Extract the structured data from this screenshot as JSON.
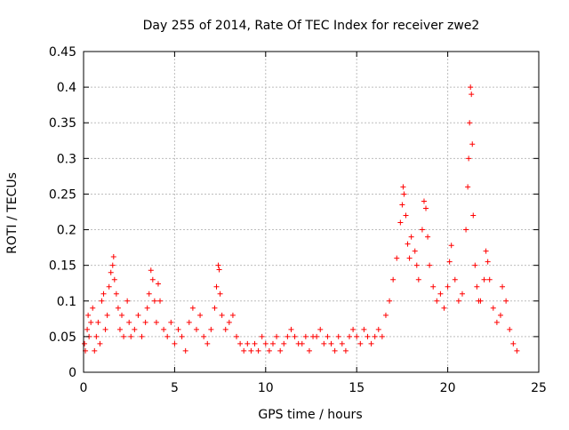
{
  "chart_data": {
    "type": "scatter",
    "title": "Day 255 of 2014, Rate Of TEC Index for receiver zwe2",
    "xlabel": "GPS time / hours",
    "ylabel": "ROTI / TECUs",
    "xlim": [
      0,
      25
    ],
    "ylim": [
      0,
      0.45
    ],
    "xticks": [
      0,
      5,
      10,
      15,
      20,
      25
    ],
    "yticks": [
      0,
      0.05,
      0.1,
      0.15,
      0.2,
      0.25,
      0.3,
      0.35,
      0.4,
      0.45
    ],
    "xtick_labels": [
      "0",
      "5",
      "10",
      "15",
      "20",
      "25"
    ],
    "ytick_labels": [
      "0",
      "0.05",
      "0.1",
      "0.15",
      "0.2",
      "0.25",
      "0.3",
      "0.35",
      "0.4",
      "0.45"
    ],
    "grid": true,
    "marker": "+",
    "series": [
      {
        "name": "ROTI",
        "color": "#ff0000",
        "points": [
          [
            0.05,
            0.04
          ],
          [
            0.1,
            0.03
          ],
          [
            0.2,
            0.06
          ],
          [
            0.25,
            0.08
          ],
          [
            0.3,
            0.05
          ],
          [
            0.4,
            0.07
          ],
          [
            0.5,
            0.09
          ],
          [
            0.6,
            0.03
          ],
          [
            0.7,
            0.05
          ],
          [
            0.8,
            0.07
          ],
          [
            0.9,
            0.04
          ],
          [
            1.0,
            0.1
          ],
          [
            1.1,
            0.11
          ],
          [
            1.2,
            0.06
          ],
          [
            1.3,
            0.08
          ],
          [
            1.4,
            0.12
          ],
          [
            1.5,
            0.14
          ],
          [
            1.6,
            0.15
          ],
          [
            1.65,
            0.162
          ],
          [
            1.7,
            0.13
          ],
          [
            1.8,
            0.11
          ],
          [
            1.9,
            0.09
          ],
          [
            2.0,
            0.06
          ],
          [
            2.1,
            0.08
          ],
          [
            2.2,
            0.05
          ],
          [
            2.4,
            0.1
          ],
          [
            2.5,
            0.07
          ],
          [
            2.6,
            0.05
          ],
          [
            2.8,
            0.06
          ],
          [
            3.0,
            0.08
          ],
          [
            3.2,
            0.05
          ],
          [
            3.4,
            0.07
          ],
          [
            3.5,
            0.09
          ],
          [
            3.6,
            0.11
          ],
          [
            3.7,
            0.143
          ],
          [
            3.8,
            0.13
          ],
          [
            3.9,
            0.1
          ],
          [
            4.0,
            0.07
          ],
          [
            4.1,
            0.124
          ],
          [
            4.2,
            0.1
          ],
          [
            4.4,
            0.06
          ],
          [
            4.6,
            0.05
          ],
          [
            4.8,
            0.07
          ],
          [
            5.0,
            0.04
          ],
          [
            5.2,
            0.06
          ],
          [
            5.4,
            0.05
          ],
          [
            5.6,
            0.03
          ],
          [
            5.8,
            0.07
          ],
          [
            6.0,
            0.09
          ],
          [
            6.2,
            0.06
          ],
          [
            6.4,
            0.08
          ],
          [
            6.6,
            0.05
          ],
          [
            6.8,
            0.04
          ],
          [
            7.0,
            0.06
          ],
          [
            7.2,
            0.09
          ],
          [
            7.3,
            0.12
          ],
          [
            7.4,
            0.15
          ],
          [
            7.45,
            0.144
          ],
          [
            7.5,
            0.11
          ],
          [
            7.6,
            0.08
          ],
          [
            7.8,
            0.06
          ],
          [
            8.0,
            0.07
          ],
          [
            8.2,
            0.08
          ],
          [
            8.4,
            0.05
          ],
          [
            8.6,
            0.04
          ],
          [
            8.8,
            0.03
          ],
          [
            9.0,
            0.04
          ],
          [
            9.2,
            0.03
          ],
          [
            9.4,
            0.04
          ],
          [
            9.6,
            0.03
          ],
          [
            9.8,
            0.05
          ],
          [
            10.0,
            0.04
          ],
          [
            10.2,
            0.03
          ],
          [
            10.4,
            0.04
          ],
          [
            10.6,
            0.05
          ],
          [
            10.8,
            0.03
          ],
          [
            11.0,
            0.04
          ],
          [
            11.2,
            0.05
          ],
          [
            11.4,
            0.06
          ],
          [
            11.6,
            0.05
          ],
          [
            11.8,
            0.04
          ],
          [
            12.0,
            0.04
          ],
          [
            12.2,
            0.05
          ],
          [
            12.4,
            0.03
          ],
          [
            12.6,
            0.05
          ],
          [
            12.8,
            0.05
          ],
          [
            13.0,
            0.06
          ],
          [
            13.2,
            0.04
          ],
          [
            13.4,
            0.05
          ],
          [
            13.6,
            0.04
          ],
          [
            13.8,
            0.03
          ],
          [
            14.0,
            0.05
          ],
          [
            14.2,
            0.04
          ],
          [
            14.4,
            0.03
          ],
          [
            14.6,
            0.05
          ],
          [
            14.8,
            0.06
          ],
          [
            15.0,
            0.05
          ],
          [
            15.2,
            0.04
          ],
          [
            15.4,
            0.06
          ],
          [
            15.6,
            0.05
          ],
          [
            15.8,
            0.04
          ],
          [
            16.0,
            0.05
          ],
          [
            16.2,
            0.06
          ],
          [
            16.4,
            0.05
          ],
          [
            16.6,
            0.08
          ],
          [
            16.8,
            0.1
          ],
          [
            17.0,
            0.13
          ],
          [
            17.2,
            0.16
          ],
          [
            17.4,
            0.21
          ],
          [
            17.5,
            0.235
          ],
          [
            17.55,
            0.26
          ],
          [
            17.6,
            0.25
          ],
          [
            17.7,
            0.22
          ],
          [
            17.8,
            0.18
          ],
          [
            17.9,
            0.16
          ],
          [
            18.0,
            0.19
          ],
          [
            18.2,
            0.17
          ],
          [
            18.3,
            0.15
          ],
          [
            18.4,
            0.13
          ],
          [
            18.6,
            0.2
          ],
          [
            18.7,
            0.24
          ],
          [
            18.8,
            0.23
          ],
          [
            18.9,
            0.19
          ],
          [
            19.0,
            0.15
          ],
          [
            19.2,
            0.12
          ],
          [
            19.4,
            0.1
          ],
          [
            19.6,
            0.11
          ],
          [
            19.8,
            0.09
          ],
          [
            20.0,
            0.12
          ],
          [
            20.1,
            0.155
          ],
          [
            20.2,
            0.178
          ],
          [
            20.4,
            0.13
          ],
          [
            20.6,
            0.1
          ],
          [
            20.8,
            0.11
          ],
          [
            21.0,
            0.2
          ],
          [
            21.1,
            0.26
          ],
          [
            21.15,
            0.3
          ],
          [
            21.2,
            0.35
          ],
          [
            21.25,
            0.4
          ],
          [
            21.3,
            0.39
          ],
          [
            21.35,
            0.32
          ],
          [
            21.4,
            0.22
          ],
          [
            21.5,
            0.15
          ],
          [
            21.6,
            0.12
          ],
          [
            21.7,
            0.1
          ],
          [
            21.8,
            0.1
          ],
          [
            22.0,
            0.13
          ],
          [
            22.1,
            0.17
          ],
          [
            22.2,
            0.155
          ],
          [
            22.3,
            0.13
          ],
          [
            22.5,
            0.09
          ],
          [
            22.7,
            0.07
          ],
          [
            22.9,
            0.08
          ],
          [
            23.0,
            0.12
          ],
          [
            23.2,
            0.1
          ],
          [
            23.4,
            0.06
          ],
          [
            23.6,
            0.04
          ],
          [
            23.8,
            0.03
          ]
        ]
      }
    ]
  }
}
